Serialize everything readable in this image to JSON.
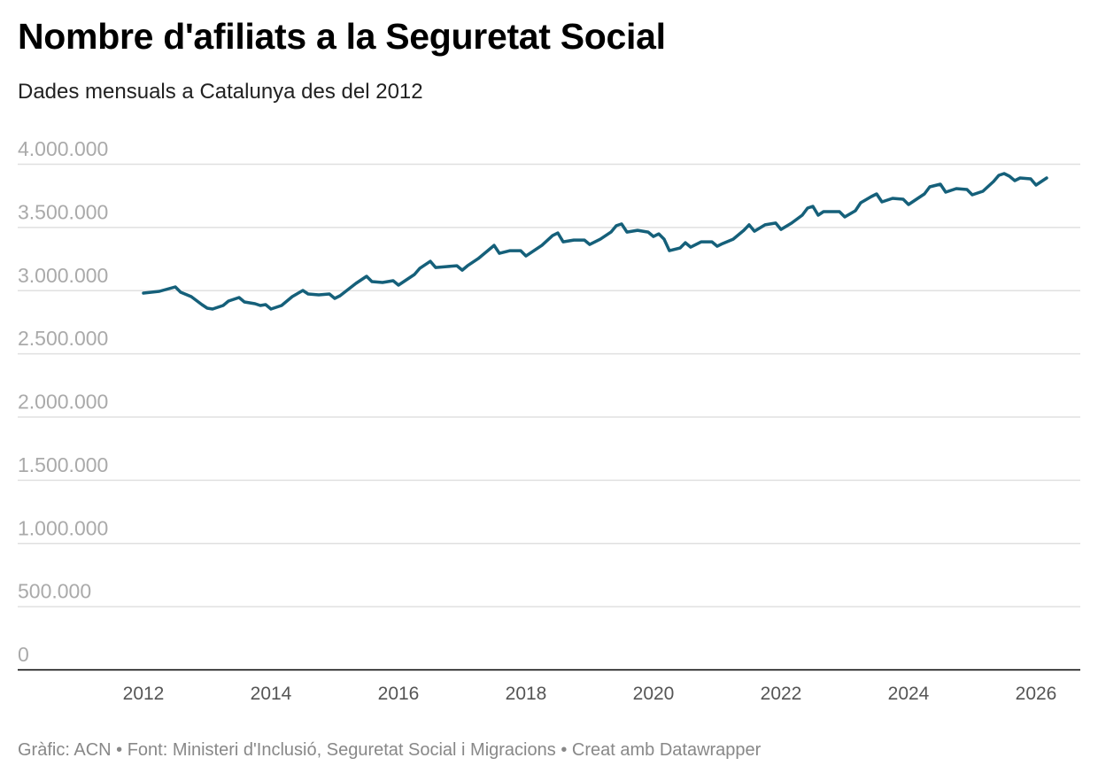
{
  "title": "Nombre d'afiliats a la Seguretat Social",
  "subtitle": "Dades mensuals a Catalunya des del 2012",
  "footer": {
    "graphic": "Gràfic: ACN",
    "separator": "•",
    "source": "Font: Ministeri d'Inclusió, Seguretat Social i Migracions",
    "credit": "Creat amb Datawrapper"
  },
  "colors": {
    "line": "#15607a",
    "grid": "#e0e0e0",
    "baseline": "#000000"
  },
  "chart_data": {
    "type": "line",
    "title": "Nombre d'afiliats a la Seguretat Social",
    "subtitle": "Dades mensuals a Catalunya des del 2012",
    "xlabel": "",
    "ylabel": "",
    "ylim": [
      0,
      4000000
    ],
    "xlim": [
      "2011-10",
      "2026-06"
    ],
    "grid": true,
    "y_ticks": [
      0,
      500000,
      1000000,
      1500000,
      2000000,
      2500000,
      3000000,
      3500000,
      4000000
    ],
    "y_tick_labels": [
      "0",
      "500.000",
      "1.000.000",
      "1.500.000",
      "2.000.000",
      "2.500.000",
      "3.000.000",
      "3.500.000",
      "4.000.000"
    ],
    "x_ticks": [
      "2012",
      "2014",
      "2016",
      "2018",
      "2020",
      "2022",
      "2024",
      "2026"
    ],
    "series": [
      {
        "x": [
          "2012-01",
          "2012-04",
          "2012-07",
          "2012-08",
          "2012-10",
          "2012-12",
          "2013-01",
          "2013-02",
          "2013-04",
          "2013-05",
          "2013-07",
          "2013-08",
          "2013-10",
          "2013-11",
          "2013-12",
          "2014-01",
          "2014-03",
          "2014-05",
          "2014-07",
          "2014-08",
          "2014-10",
          "2014-12",
          "2015-01",
          "2015-02",
          "2015-05",
          "2015-07",
          "2015-08",
          "2015-10",
          "2015-12",
          "2016-01",
          "2016-04",
          "2016-05",
          "2016-07",
          "2016-08",
          "2016-10",
          "2016-12",
          "2017-01",
          "2017-02",
          "2017-04",
          "2017-06",
          "2017-07",
          "2017-08",
          "2017-10",
          "2017-12",
          "2018-01",
          "2018-04",
          "2018-06",
          "2018-07",
          "2018-08",
          "2018-10",
          "2018-12",
          "2019-01",
          "2019-03",
          "2019-05",
          "2019-06",
          "2019-07",
          "2019-08",
          "2019-10",
          "2019-12",
          "2020-01",
          "2020-02",
          "2020-03",
          "2020-04",
          "2020-06",
          "2020-07",
          "2020-08",
          "2020-10",
          "2020-12",
          "2021-01",
          "2021-02",
          "2021-04",
          "2021-06",
          "2021-07",
          "2021-08",
          "2021-10",
          "2021-12",
          "2022-01",
          "2022-03",
          "2022-05",
          "2022-06",
          "2022-07",
          "2022-08",
          "2022-09",
          "2022-12",
          "2023-01",
          "2023-03",
          "2023-04",
          "2023-06",
          "2023-07",
          "2023-08",
          "2023-10",
          "2023-12",
          "2024-01",
          "2024-02",
          "2024-04",
          "2024-05",
          "2024-07",
          "2024-08",
          "2024-10",
          "2024-12",
          "2025-01",
          "2025-03",
          "2025-05",
          "2025-06",
          "2025-07",
          "2025-08",
          "2025-09",
          "2025-10",
          "2025-12",
          "2026-01",
          "2026-02",
          "2026-03"
        ],
        "values": [
          2977000,
          2991000,
          3026000,
          2984000,
          2949000,
          2886000,
          2858000,
          2851000,
          2879000,
          2914000,
          2942000,
          2907000,
          2893000,
          2879000,
          2886000,
          2851000,
          2879000,
          2949000,
          2998000,
          2970000,
          2963000,
          2970000,
          2935000,
          2956000,
          3054000,
          3110000,
          3068000,
          3061000,
          3075000,
          3040000,
          3124000,
          3173000,
          3229000,
          3180000,
          3187000,
          3194000,
          3159000,
          3194000,
          3250000,
          3320000,
          3355000,
          3292000,
          3313000,
          3313000,
          3271000,
          3355000,
          3432000,
          3453000,
          3383000,
          3397000,
          3397000,
          3362000,
          3404000,
          3460000,
          3510000,
          3524000,
          3460000,
          3474000,
          3460000,
          3425000,
          3446000,
          3404000,
          3313000,
          3334000,
          3376000,
          3341000,
          3383000,
          3383000,
          3348000,
          3369000,
          3404000,
          3474000,
          3517000,
          3467000,
          3517000,
          3531000,
          3481000,
          3531000,
          3594000,
          3650000,
          3664000,
          3594000,
          3622000,
          3622000,
          3580000,
          3629000,
          3692000,
          3741000,
          3762000,
          3699000,
          3727000,
          3720000,
          3678000,
          3706000,
          3762000,
          3818000,
          3839000,
          3776000,
          3804000,
          3797000,
          3755000,
          3783000,
          3860000,
          3909000,
          3923000,
          3902000,
          3867000,
          3888000,
          3881000,
          3832000,
          3860000,
          3888000
        ]
      }
    ]
  }
}
